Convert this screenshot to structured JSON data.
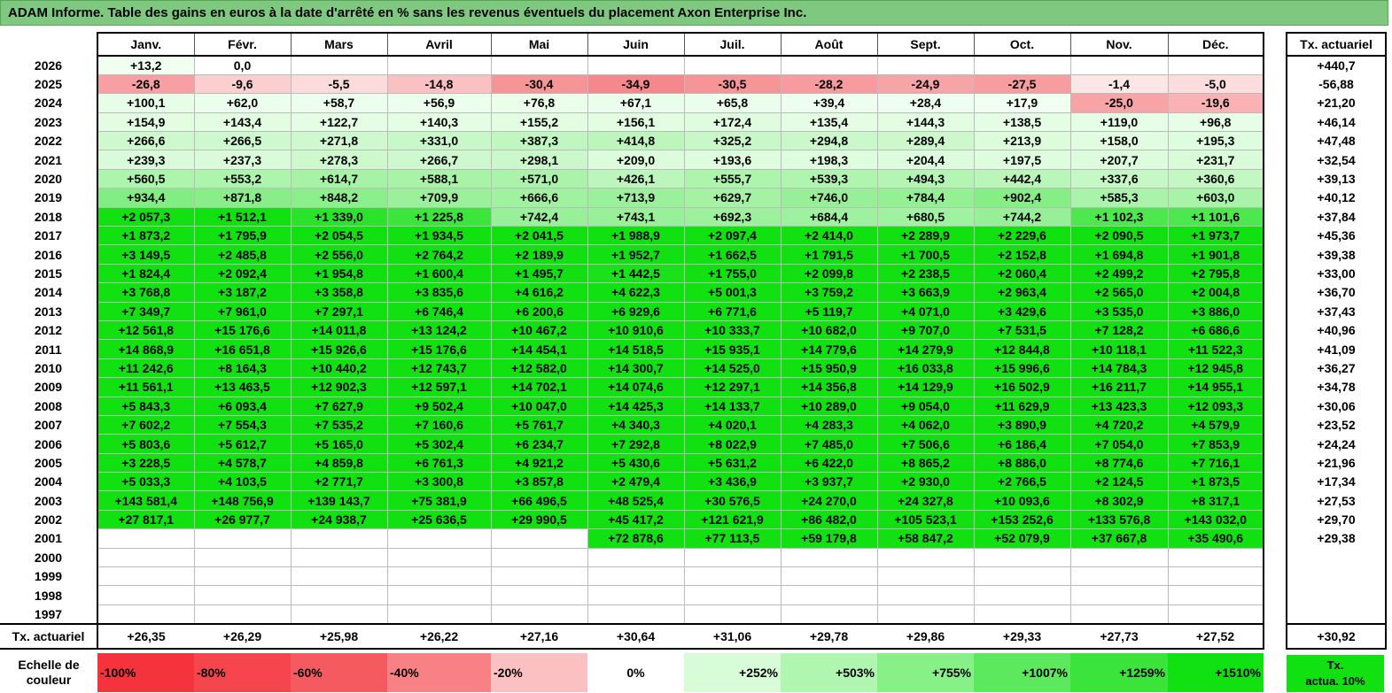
{
  "title": "ADAM Informe. Table des gains en euros à la date d'arrêté en % sans les revenus éventuels du placement Axon Enterprise Inc.",
  "months": [
    "Janv.",
    "Févr.",
    "Mars",
    "Avril",
    "Mai",
    "Juin",
    "Juil.",
    "Août",
    "Sept.",
    "Oct.",
    "Nov.",
    "Déc."
  ],
  "side_header": "Tx. actuariel",
  "rows": [
    {
      "year": "2026",
      "values": [
        "+13,2",
        "0,0",
        "",
        "",
        "",
        "",
        "",
        "",
        "",
        "",
        "",
        ""
      ],
      "tx": "+440,7"
    },
    {
      "year": "2025",
      "values": [
        "-26,8",
        "-9,6",
        "-5,5",
        "-14,8",
        "-30,4",
        "-34,9",
        "-30,5",
        "-28,2",
        "-24,9",
        "-27,5",
        "-1,4",
        "-5,0"
      ],
      "tx": "-56,88"
    },
    {
      "year": "2024",
      "values": [
        "+100,1",
        "+62,0",
        "+58,7",
        "+56,9",
        "+76,8",
        "+67,1",
        "+65,8",
        "+39,4",
        "+28,4",
        "+17,9",
        "-25,0",
        "-19,6"
      ],
      "tx": "+21,20"
    },
    {
      "year": "2023",
      "values": [
        "+154,9",
        "+143,4",
        "+122,7",
        "+140,3",
        "+155,2",
        "+156,1",
        "+172,4",
        "+135,4",
        "+144,3",
        "+138,5",
        "+119,0",
        "+96,8"
      ],
      "tx": "+46,14"
    },
    {
      "year": "2022",
      "values": [
        "+266,6",
        "+266,5",
        "+271,8",
        "+331,0",
        "+387,3",
        "+414,8",
        "+325,2",
        "+294,8",
        "+289,4",
        "+213,9",
        "+158,0",
        "+195,3"
      ],
      "tx": "+47,48"
    },
    {
      "year": "2021",
      "values": [
        "+239,3",
        "+237,3",
        "+278,3",
        "+266,7",
        "+298,1",
        "+209,0",
        "+193,6",
        "+198,3",
        "+204,4",
        "+197,5",
        "+207,7",
        "+231,7"
      ],
      "tx": "+32,54"
    },
    {
      "year": "2020",
      "values": [
        "+560,5",
        "+553,2",
        "+614,7",
        "+588,1",
        "+571,0",
        "+426,1",
        "+555,7",
        "+539,3",
        "+494,3",
        "+442,4",
        "+337,6",
        "+360,6"
      ],
      "tx": "+39,13"
    },
    {
      "year": "2019",
      "values": [
        "+934,4",
        "+871,8",
        "+848,2",
        "+709,9",
        "+666,6",
        "+713,9",
        "+629,7",
        "+746,0",
        "+784,4",
        "+902,4",
        "+585,3",
        "+603,0"
      ],
      "tx": "+40,12"
    },
    {
      "year": "2018",
      "values": [
        "+2 057,3",
        "+1 512,1",
        "+1 339,0",
        "+1 225,8",
        "+742,4",
        "+743,1",
        "+692,3",
        "+684,4",
        "+680,5",
        "+744,2",
        "+1 102,3",
        "+1 101,6"
      ],
      "tx": "+37,84"
    },
    {
      "year": "2017",
      "values": [
        "+1 873,2",
        "+1 795,9",
        "+2 054,5",
        "+1 934,5",
        "+2 041,5",
        "+1 988,9",
        "+2 097,4",
        "+2 414,0",
        "+2 289,9",
        "+2 229,6",
        "+2 090,5",
        "+1 973,7"
      ],
      "tx": "+45,36"
    },
    {
      "year": "2016",
      "values": [
        "+3 149,5",
        "+2 485,8",
        "+2 556,0",
        "+2 764,2",
        "+2 189,9",
        "+1 952,7",
        "+1 662,5",
        "+1 791,5",
        "+1 700,5",
        "+2 152,8",
        "+1 694,8",
        "+1 901,8"
      ],
      "tx": "+39,38"
    },
    {
      "year": "2015",
      "values": [
        "+1 824,4",
        "+2 092,4",
        "+1 954,8",
        "+1 600,4",
        "+1 495,7",
        "+1 442,5",
        "+1 755,0",
        "+2 099,8",
        "+2 238,5",
        "+2 060,4",
        "+2 499,2",
        "+2 795,8"
      ],
      "tx": "+33,00"
    },
    {
      "year": "2014",
      "values": [
        "+3 768,8",
        "+3 187,2",
        "+3 358,8",
        "+3 835,6",
        "+4 616,2",
        "+4 622,3",
        "+5 001,3",
        "+3 759,2",
        "+3 663,9",
        "+2 963,4",
        "+2 565,0",
        "+2 004,8"
      ],
      "tx": "+36,70"
    },
    {
      "year": "2013",
      "values": [
        "+7 349,7",
        "+7 961,0",
        "+7 297,1",
        "+6 746,4",
        "+6 200,6",
        "+6 929,6",
        "+6 771,6",
        "+5 119,7",
        "+4 071,0",
        "+3 429,6",
        "+3 535,0",
        "+3 886,0"
      ],
      "tx": "+37,43"
    },
    {
      "year": "2012",
      "values": [
        "+12 561,8",
        "+15 176,6",
        "+14 011,8",
        "+13 124,2",
        "+10 467,2",
        "+10 910,6",
        "+10 333,7",
        "+10 682,0",
        "+9 707,0",
        "+7 531,5",
        "+7 128,2",
        "+6 686,6"
      ],
      "tx": "+40,96"
    },
    {
      "year": "2011",
      "values": [
        "+14 868,9",
        "+16 651,8",
        "+15 926,6",
        "+15 176,6",
        "+14 454,1",
        "+14 518,5",
        "+15 935,1",
        "+14 779,6",
        "+14 279,9",
        "+12 844,8",
        "+10 118,1",
        "+11 522,3"
      ],
      "tx": "+41,09"
    },
    {
      "year": "2010",
      "values": [
        "+11 242,6",
        "+8 164,3",
        "+10 440,2",
        "+12 743,7",
        "+12 582,0",
        "+14 300,7",
        "+14 525,0",
        "+15 950,9",
        "+16 033,8",
        "+15 996,6",
        "+14 784,3",
        "+12 945,8"
      ],
      "tx": "+36,27"
    },
    {
      "year": "2009",
      "values": [
        "+11 561,1",
        "+13 463,5",
        "+12 902,3",
        "+12 597,1",
        "+14 702,1",
        "+14 074,6",
        "+12 297,1",
        "+14 356,8",
        "+14 129,9",
        "+16 502,9",
        "+16 211,7",
        "+14 955,1"
      ],
      "tx": "+34,78"
    },
    {
      "year": "2008",
      "values": [
        "+5 843,3",
        "+6 093,4",
        "+7 627,9",
        "+9 502,4",
        "+10 047,0",
        "+14 425,3",
        "+14 133,7",
        "+10 289,0",
        "+9 054,0",
        "+11 629,9",
        "+13 423,3",
        "+12 093,3"
      ],
      "tx": "+30,06"
    },
    {
      "year": "2007",
      "values": [
        "+7 602,2",
        "+7 554,3",
        "+7 535,2",
        "+7 160,6",
        "+5 761,7",
        "+4 340,3",
        "+4 020,1",
        "+4 283,3",
        "+4 062,0",
        "+3 890,9",
        "+4 720,2",
        "+4 579,9"
      ],
      "tx": "+23,52"
    },
    {
      "year": "2006",
      "values": [
        "+5 803,6",
        "+5 612,7",
        "+5 165,0",
        "+5 302,4",
        "+6 234,7",
        "+7 292,8",
        "+8 022,9",
        "+7 485,0",
        "+7 506,6",
        "+6 186,4",
        "+7 054,0",
        "+7 853,9"
      ],
      "tx": "+24,24"
    },
    {
      "year": "2005",
      "values": [
        "+3 228,5",
        "+4 578,7",
        "+4 859,8",
        "+6 761,3",
        "+4 921,2",
        "+5 430,6",
        "+5 631,2",
        "+6 422,0",
        "+8 865,2",
        "+8 886,0",
        "+8 774,6",
        "+7 716,1"
      ],
      "tx": "+21,96"
    },
    {
      "year": "2004",
      "values": [
        "+5 033,3",
        "+4 103,5",
        "+2 771,7",
        "+3 300,8",
        "+3 857,8",
        "+2 479,4",
        "+3 436,9",
        "+3 937,7",
        "+2 930,0",
        "+2 766,5",
        "+2 124,5",
        "+1 873,5"
      ],
      "tx": "+17,34"
    },
    {
      "year": "2003",
      "values": [
        "+143 581,4",
        "+148 756,9",
        "+139 143,7",
        "+75 381,9",
        "+66 496,5",
        "+48 525,4",
        "+30 576,5",
        "+24 270,0",
        "+24 327,8",
        "+10 093,6",
        "+8 302,9",
        "+8 317,1"
      ],
      "tx": "+27,53"
    },
    {
      "year": "2002",
      "values": [
        "+27 817,1",
        "+26 977,7",
        "+24 938,7",
        "+25 636,5",
        "+29 990,5",
        "+45 417,2",
        "+121 621,9",
        "+86 482,0",
        "+105 523,1",
        "+153 252,6",
        "+133 576,8",
        "+143 032,0"
      ],
      "tx": "+29,70"
    },
    {
      "year": "2001",
      "values": [
        "",
        "",
        "",
        "",
        "",
        "+72 878,6",
        "+77 113,5",
        "+59 179,8",
        "+58 847,2",
        "+52 079,9",
        "+37 667,8",
        "+35 490,6"
      ],
      "tx": "+29,38"
    },
    {
      "year": "2000",
      "values": [
        "",
        "",
        "",
        "",
        "",
        "",
        "",
        "",
        "",
        "",
        "",
        ""
      ],
      "tx": ""
    },
    {
      "year": "1999",
      "values": [
        "",
        "",
        "",
        "",
        "",
        "",
        "",
        "",
        "",
        "",
        "",
        ""
      ],
      "tx": ""
    },
    {
      "year": "1998",
      "values": [
        "",
        "",
        "",
        "",
        "",
        "",
        "",
        "",
        "",
        "",
        "",
        ""
      ],
      "tx": ""
    },
    {
      "year": "1997",
      "values": [
        "",
        "",
        "",
        "",
        "",
        "",
        "",
        "",
        "",
        "",
        "",
        ""
      ],
      "tx": ""
    }
  ],
  "avg_row": {
    "label": "Tx. actuariel",
    "values": [
      "+26,35",
      "+26,29",
      "+25,98",
      "+26,22",
      "+27,16",
      "+30,64",
      "+31,06",
      "+29,78",
      "+29,86",
      "+29,33",
      "+27,73",
      "+27,52"
    ],
    "tx": "+30,92"
  },
  "scale": {
    "label_line1": "Echelle de",
    "label_line2": "couleur",
    "steps": [
      {
        "text": "-100%",
        "color": "#f4333d"
      },
      {
        "text": "-80%",
        "color": "#f5454d"
      },
      {
        "text": "-60%",
        "color": "#f65a61"
      },
      {
        "text": "-40%",
        "color": "#f88186"
      },
      {
        "text": "-20%",
        "color": "#fbc0c2"
      },
      {
        "text": "0%",
        "color": "#ffffff"
      },
      {
        "text": "+252%",
        "color": "#d8fbd8"
      },
      {
        "text": "+503%",
        "color": "#b0f6b0"
      },
      {
        "text": "+755%",
        "color": "#87f087"
      },
      {
        "text": "+1007%",
        "color": "#5de95d"
      },
      {
        "text": "+1259%",
        "color": "#3ae43a"
      },
      {
        "text": "+1510%",
        "color": "#11e011"
      }
    ],
    "tx_line1": "Tx.",
    "tx_line2": "actua. 10%"
  }
}
